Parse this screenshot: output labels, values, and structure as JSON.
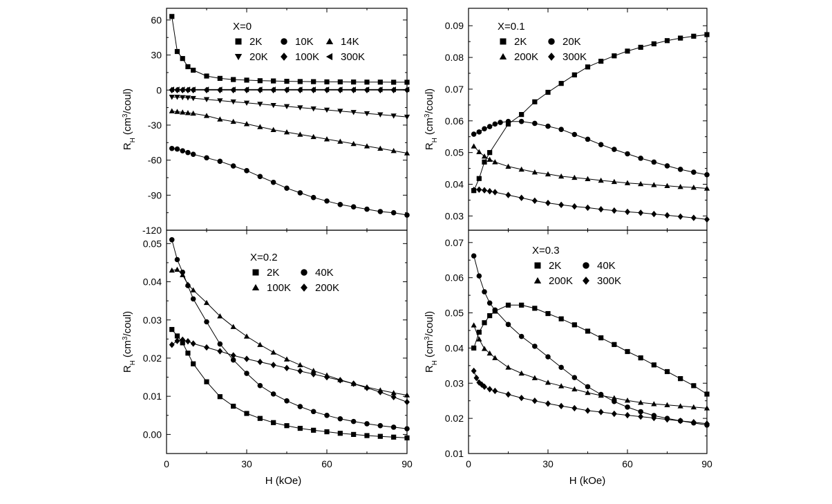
{
  "figure": {
    "x_axis_label": "H (kOe)",
    "y_axis_label_main": "R",
    "y_axis_label_sub": "H",
    "y_axis_label_unit_a": "(cm",
    "y_axis_label_unit_sup": "3",
    "y_axis_label_unit_b": "/coul)"
  },
  "chart_data": [
    {
      "type": "scatter",
      "panel": "top-left",
      "legend_title": "X=0",
      "xlim": [
        0,
        90
      ],
      "ylim": [
        -120,
        70
      ],
      "xticks": [
        0,
        30,
        60,
        90
      ],
      "yticks": [
        -120,
        -90,
        -60,
        -30,
        0,
        30,
        60
      ],
      "show_x_ticklabels": false,
      "ylabel": true,
      "legend_rows": [
        [
          "2K",
          "10K",
          "14K"
        ],
        [
          "20K",
          "100K",
          "300K"
        ]
      ],
      "series": [
        {
          "name": "2K",
          "marker": "square",
          "x": [
            2,
            4,
            6,
            8,
            10,
            15,
            20,
            25,
            30,
            35,
            40,
            45,
            50,
            55,
            60,
            65,
            70,
            75,
            80,
            85,
            90
          ],
          "y": [
            63,
            33,
            27,
            20,
            17,
            12,
            10,
            9,
            8.5,
            8,
            7.8,
            7.5,
            7.3,
            7.2,
            7,
            7,
            6.9,
            6.8,
            6.8,
            6.7,
            6.7
          ]
        },
        {
          "name": "10K",
          "marker": "circle",
          "x": [
            2,
            4,
            6,
            8,
            10,
            15,
            20,
            25,
            30,
            35,
            40,
            45,
            50,
            55,
            60,
            65,
            70,
            75,
            80,
            85,
            90
          ],
          "y": [
            -50,
            -50.5,
            -52,
            -53.5,
            -55,
            -58,
            -61,
            -65,
            -69,
            -74,
            -79,
            -84,
            -88,
            -92,
            -95,
            -98,
            -100,
            -102,
            -104,
            -105,
            -107
          ]
        },
        {
          "name": "14K",
          "marker": "triangle-up",
          "x": [
            2,
            4,
            6,
            8,
            10,
            15,
            20,
            25,
            30,
            35,
            40,
            45,
            50,
            55,
            60,
            65,
            70,
            75,
            80,
            85,
            90
          ],
          "y": [
            -18,
            -18.5,
            -19,
            -19.5,
            -20,
            -22,
            -25,
            -27,
            -29,
            -31.5,
            -34,
            -36,
            -38,
            -40,
            -42,
            -44,
            -46,
            -48,
            -50,
            -52,
            -54
          ]
        },
        {
          "name": "20K",
          "marker": "triangle-down",
          "x": [
            2,
            4,
            6,
            8,
            10,
            15,
            20,
            25,
            30,
            35,
            40,
            45,
            50,
            55,
            60,
            65,
            70,
            75,
            80,
            85,
            90
          ],
          "y": [
            -6,
            -6,
            -6.3,
            -6.6,
            -7,
            -8,
            -9,
            -10,
            -11,
            -12,
            -13,
            -14,
            -15,
            -16,
            -17,
            -18,
            -19,
            -20,
            -21,
            -22,
            -23
          ]
        },
        {
          "name": "100K",
          "marker": "diamond",
          "x": [
            2,
            4,
            6,
            8,
            10,
            15,
            20,
            25,
            30,
            35,
            40,
            45,
            50,
            55,
            60,
            65,
            70,
            75,
            80,
            85,
            90
          ],
          "y": [
            0,
            0,
            0,
            0,
            0,
            0,
            0,
            0,
            0,
            0,
            0,
            0,
            0,
            0,
            0,
            0,
            0,
            0,
            0,
            0,
            0
          ]
        },
        {
          "name": "300K",
          "marker": "triangle-left",
          "x": [
            2,
            4,
            6,
            8,
            10,
            15,
            20,
            25,
            30,
            35,
            40,
            45,
            50,
            55,
            60,
            65,
            70,
            75,
            80,
            85,
            90
          ],
          "y": [
            0.5,
            0.5,
            0.5,
            0.5,
            0.5,
            0.5,
            0.5,
            0.5,
            0.5,
            0.5,
            0.5,
            0.5,
            0.5,
            0.5,
            0.5,
            0.5,
            0.5,
            0.5,
            0.5,
            0.5,
            0.5
          ]
        }
      ]
    },
    {
      "type": "scatter",
      "panel": "top-right",
      "legend_title": "X=0.1",
      "xlim": [
        0,
        90
      ],
      "ylim": [
        0.0255,
        0.0955
      ],
      "xticks": [
        0,
        30,
        60,
        90
      ],
      "yticks": [
        0.03,
        0.04,
        0.05,
        0.06,
        0.07,
        0.08,
        0.09
      ],
      "ytick_labels": [
        "0.03",
        "0.04",
        "0.05",
        "0.06",
        "0.07",
        "0.08",
        "0.09"
      ],
      "show_x_ticklabels": false,
      "ylabel": true,
      "legend_rows": [
        [
          "2K",
          "20K"
        ],
        [
          "200K",
          "300K"
        ]
      ],
      "series": [
        {
          "name": "2K",
          "marker": "square",
          "x": [
            2,
            4,
            6,
            8,
            15,
            20,
            25,
            30,
            35,
            40,
            45,
            50,
            55,
            60,
            65,
            70,
            75,
            80,
            85,
            90
          ],
          "y": [
            0.038,
            0.0418,
            0.047,
            0.05,
            0.059,
            0.062,
            0.066,
            0.069,
            0.0718,
            0.0745,
            0.077,
            0.0788,
            0.0805,
            0.082,
            0.0832,
            0.0843,
            0.0853,
            0.0861,
            0.0867,
            0.0872
          ]
        },
        {
          "name": "20K",
          "marker": "circle",
          "x": [
            2,
            4,
            6,
            8,
            10,
            12,
            15,
            20,
            25,
            30,
            35,
            40,
            45,
            50,
            55,
            60,
            65,
            70,
            75,
            80,
            85,
            90
          ],
          "y": [
            0.0558,
            0.0565,
            0.0575,
            0.0582,
            0.059,
            0.0595,
            0.0598,
            0.0598,
            0.0592,
            0.0583,
            0.0573,
            0.0557,
            0.0542,
            0.0525,
            0.051,
            0.0496,
            0.0482,
            0.047,
            0.0458,
            0.0447,
            0.0438,
            0.043
          ]
        },
        {
          "name": "200K",
          "marker": "triangle-up",
          "x": [
            2,
            4,
            6,
            8,
            10,
            15,
            20,
            25,
            30,
            35,
            40,
            45,
            50,
            55,
            60,
            65,
            70,
            75,
            80,
            85,
            90
          ],
          "y": [
            0.052,
            0.0502,
            0.0488,
            0.0478,
            0.047,
            0.0456,
            0.0447,
            0.0438,
            0.0432,
            0.0425,
            0.0421,
            0.0417,
            0.0412,
            0.0408,
            0.0404,
            0.0401,
            0.0398,
            0.0395,
            0.0392,
            0.039,
            0.0387
          ]
        },
        {
          "name": "300K",
          "marker": "diamond",
          "x": [
            2,
            4,
            6,
            8,
            10,
            15,
            20,
            25,
            30,
            35,
            40,
            45,
            50,
            55,
            60,
            65,
            70,
            75,
            80,
            85,
            90
          ],
          "y": [
            0.0382,
            0.0383,
            0.0381,
            0.0378,
            0.0375,
            0.0366,
            0.0357,
            0.0348,
            0.0341,
            0.0335,
            0.033,
            0.0326,
            0.0321,
            0.0317,
            0.0313,
            0.031,
            0.0306,
            0.0302,
            0.0298,
            0.0294,
            0.0289
          ]
        }
      ]
    },
    {
      "type": "scatter",
      "panel": "bottom-left",
      "legend_title": "X=0.2",
      "xlim": [
        0,
        90
      ],
      "ylim": [
        -0.005,
        0.0535
      ],
      "xticks": [
        0,
        30,
        60,
        90
      ],
      "yticks": [
        0,
        0.01,
        0.02,
        0.03,
        0.04,
        0.05
      ],
      "ytick_labels": [
        "0.00",
        "0.01",
        "0.02",
        "0.03",
        "0.04",
        "0.05"
      ],
      "show_x_ticklabels": true,
      "ylabel": true,
      "legend_rows": [
        [
          "2K",
          "40K"
        ],
        [
          "100K",
          "200K"
        ]
      ],
      "series": [
        {
          "name": "2K",
          "marker": "square",
          "x": [
            2,
            4,
            6,
            8,
            10,
            15,
            20,
            25,
            30,
            35,
            40,
            45,
            50,
            55,
            60,
            65,
            70,
            75,
            80,
            85,
            90
          ],
          "y": [
            0.0275,
            0.0258,
            0.024,
            0.0213,
            0.0185,
            0.0138,
            0.0099,
            0.0074,
            0.0055,
            0.0042,
            0.0031,
            0.0023,
            0.0016,
            0.0011,
            0.0007,
            0.0003,
            0,
            -0.0003,
            -0.0005,
            -0.0007,
            -0.0009
          ]
        },
        {
          "name": "40K",
          "marker": "circle",
          "x": [
            2,
            4,
            6,
            8,
            10,
            15,
            20,
            25,
            30,
            35,
            40,
            45,
            50,
            55,
            60,
            65,
            70,
            75,
            80,
            85,
            90
          ],
          "y": [
            0.051,
            0.0458,
            0.0425,
            0.039,
            0.0355,
            0.0295,
            0.0237,
            0.0195,
            0.016,
            0.0128,
            0.0106,
            0.0088,
            0.0073,
            0.006,
            0.005,
            0.0041,
            0.0034,
            0.0028,
            0.0023,
            0.0019,
            0.0015
          ]
        },
        {
          "name": "100K",
          "marker": "triangle-up",
          "x": [
            2,
            4,
            6,
            8,
            10,
            15,
            20,
            25,
            30,
            35,
            40,
            45,
            50,
            55,
            60,
            65,
            70,
            75,
            80,
            85,
            90
          ],
          "y": [
            0.043,
            0.0432,
            0.0418,
            0.0393,
            0.0378,
            0.0345,
            0.031,
            0.0282,
            0.0257,
            0.0235,
            0.0215,
            0.0197,
            0.0182,
            0.0167,
            0.0155,
            0.0143,
            0.0133,
            0.0124,
            0.0116,
            0.0109,
            0.0103
          ]
        },
        {
          "name": "200K",
          "marker": "diamond",
          "x": [
            2,
            4,
            6,
            8,
            10,
            15,
            20,
            25,
            30,
            35,
            40,
            45,
            50,
            55,
            60,
            65,
            70,
            75,
            80,
            85,
            90
          ],
          "y": [
            0.0235,
            0.0245,
            0.0248,
            0.0244,
            0.0238,
            0.0228,
            0.0218,
            0.0207,
            0.0198,
            0.019,
            0.0182,
            0.0174,
            0.0166,
            0.0158,
            0.015,
            0.0142,
            0.0133,
            0.0122,
            0.0111,
            0.0098,
            0.0085
          ]
        }
      ]
    },
    {
      "type": "scatter",
      "panel": "bottom-right",
      "legend_title": "X=0.3",
      "xlim": [
        0,
        90
      ],
      "ylim": [
        0.01,
        0.0735
      ],
      "xticks": [
        0,
        30,
        60,
        90
      ],
      "yticks": [
        0.01,
        0.02,
        0.03,
        0.04,
        0.05,
        0.06,
        0.07
      ],
      "ytick_labels": [
        "0.01",
        "0.02",
        "0.03",
        "0.04",
        "0.05",
        "0.06",
        "0.07"
      ],
      "show_x_ticklabels": true,
      "ylabel": true,
      "legend_rows": [
        [
          "2K",
          "40K"
        ],
        [
          "200K",
          "300K"
        ]
      ],
      "series": [
        {
          "name": "2K",
          "marker": "square",
          "x": [
            2,
            4,
            6,
            8,
            10,
            15,
            20,
            25,
            30,
            35,
            40,
            45,
            50,
            55,
            60,
            65,
            70,
            75,
            80,
            85,
            90
          ],
          "y": [
            0.04,
            0.0445,
            0.0472,
            0.0492,
            0.0505,
            0.0522,
            0.0522,
            0.0513,
            0.0498,
            0.0483,
            0.0466,
            0.0448,
            0.0429,
            0.041,
            0.039,
            0.0372,
            0.0352,
            0.0333,
            0.0313,
            0.0293,
            0.0269
          ]
        },
        {
          "name": "40K",
          "marker": "circle",
          "x": [
            2,
            4,
            6,
            8,
            10,
            15,
            20,
            25,
            30,
            35,
            40,
            45,
            50,
            55,
            60,
            65,
            70,
            75,
            80,
            85,
            90
          ],
          "y": [
            0.0662,
            0.0605,
            0.056,
            0.0528,
            0.0508,
            0.0467,
            0.0433,
            0.0405,
            0.0375,
            0.0345,
            0.0316,
            0.029,
            0.0268,
            0.0248,
            0.0232,
            0.0219,
            0.0208,
            0.02,
            0.0193,
            0.0187,
            0.0181
          ]
        },
        {
          "name": "200K",
          "marker": "triangle-up",
          "x": [
            2,
            4,
            6,
            8,
            10,
            15,
            20,
            25,
            30,
            35,
            40,
            45,
            50,
            55,
            60,
            65,
            70,
            75,
            80,
            85,
            90
          ],
          "y": [
            0.0465,
            0.0425,
            0.0398,
            0.0385,
            0.0372,
            0.0345,
            0.0328,
            0.0315,
            0.0302,
            0.0292,
            0.0283,
            0.0273,
            0.0265,
            0.0258,
            0.0251,
            0.0245,
            0.0241,
            0.0238,
            0.0235,
            0.0232,
            0.0229
          ]
        },
        {
          "name": "300K",
          "marker": "diamond",
          "x": [
            2,
            3,
            4,
            5,
            6,
            8,
            10,
            15,
            20,
            25,
            30,
            35,
            40,
            45,
            50,
            55,
            60,
            65,
            70,
            75,
            80,
            85,
            90
          ],
          "y": [
            0.0335,
            0.0315,
            0.0302,
            0.0296,
            0.029,
            0.0283,
            0.0278,
            0.0268,
            0.0258,
            0.025,
            0.0242,
            0.0235,
            0.0229,
            0.0222,
            0.0218,
            0.0213,
            0.0209,
            0.0205,
            0.0201,
            0.0197,
            0.0193,
            0.0189,
            0.0185
          ]
        }
      ]
    }
  ]
}
